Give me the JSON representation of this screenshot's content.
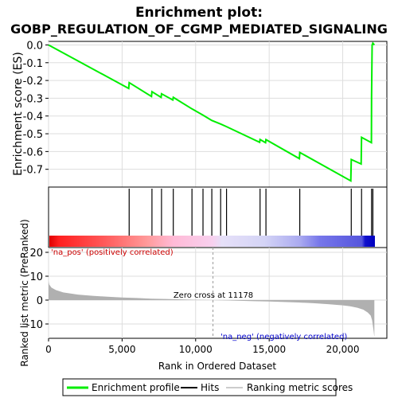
{
  "chart_data": {
    "type": "line",
    "title_line1": "Enrichment plot:",
    "title_line2": "GOBP_REGULATION_OF_CGMP_MEDIATED_SIGNALING",
    "es_panel": {
      "ylabel": "Enrichment score (ES)",
      "ylim": [
        -0.8,
        0.02
      ],
      "y_ticks": [
        "0.0",
        "-0.1",
        "-0.2",
        "-0.3",
        "-0.4",
        "-0.5",
        "-0.6",
        "-0.7"
      ],
      "y_tick_values": [
        0.0,
        -0.1,
        -0.2,
        -0.3,
        -0.4,
        -0.5,
        -0.6,
        -0.7
      ],
      "series": {
        "name": "Enrichment profile",
        "color": "#00ee00",
        "x": [
          0,
          5450,
          5480,
          7000,
          7030,
          7650,
          7680,
          8450,
          8480,
          9750,
          10500,
          11100,
          11700,
          12100,
          14350,
          14380,
          14750,
          14780,
          17050,
          17080,
          20550,
          20580,
          21250,
          21280,
          21950,
          21960,
          22000,
          22050,
          22150
        ],
        "y": [
          0.0,
          -0.245,
          -0.212,
          -0.29,
          -0.263,
          -0.295,
          -0.275,
          -0.31,
          -0.295,
          -0.36,
          -0.395,
          -0.425,
          -0.445,
          -0.46,
          -0.548,
          -0.532,
          -0.55,
          -0.533,
          -0.64,
          -0.605,
          -0.765,
          -0.645,
          -0.67,
          -0.52,
          -0.55,
          -0.29,
          0.0,
          0.01,
          0.0
        ]
      }
    },
    "hits_panel": {
      "hit_positions": [
        5480,
        7030,
        7680,
        8480,
        9750,
        10500,
        11100,
        11700,
        12100,
        14380,
        14780,
        17080,
        20580,
        21280,
        21960,
        22050
      ]
    },
    "metric_panel": {
      "ylabel": "Ranked list metric (PreRanked)",
      "xlabel": "Rank in Ordered Dataset",
      "xlim": [
        0,
        23000
      ],
      "ylim": [
        -16,
        22
      ],
      "x_ticks": [
        "0",
        "5,000",
        "10,000",
        "15,000",
        "20,000"
      ],
      "x_tick_values": [
        0,
        5000,
        10000,
        15000,
        20000
      ],
      "y_ticks": [
        "20",
        "10",
        "0",
        "-10"
      ],
      "y_tick_values": [
        20,
        10,
        0,
        -10
      ],
      "zero_cross_label": "Zero cross at 11178",
      "zero_cross": 11178,
      "pos_label": "'na_pos' (positively correlated)",
      "neg_label": "'na_neg' (negatively correlated)",
      "n": 22150,
      "profile_x": [
        0,
        50,
        200,
        500,
        1000,
        2000,
        3000,
        4000,
        5000,
        6000,
        7000,
        8000,
        9000,
        10000,
        11178,
        12000,
        13000,
        14000,
        15000,
        16000,
        17000,
        18000,
        19000,
        20000,
        20500,
        21000,
        21400,
        21700,
        21900,
        22000,
        22100,
        22150
      ],
      "profile_y": [
        8.0,
        6.5,
        5.2,
        4.2,
        3.2,
        2.3,
        1.8,
        1.4,
        1.1,
        0.85,
        0.6,
        0.45,
        0.3,
        0.15,
        0.0,
        -0.15,
        -0.3,
        -0.45,
        -0.6,
        -0.8,
        -1.0,
        -1.3,
        -1.7,
        -2.2,
        -2.6,
        -3.2,
        -4.0,
        -5.2,
        -6.5,
        -8.5,
        -13.0,
        -15.5
      ]
    },
    "legend": [
      {
        "label": "Enrichment profile",
        "color": "#00ee00"
      },
      {
        "label": "Hits",
        "color": "#000000"
      },
      {
        "label": "Ranking metric scores",
        "color": "#cccccc"
      }
    ]
  }
}
